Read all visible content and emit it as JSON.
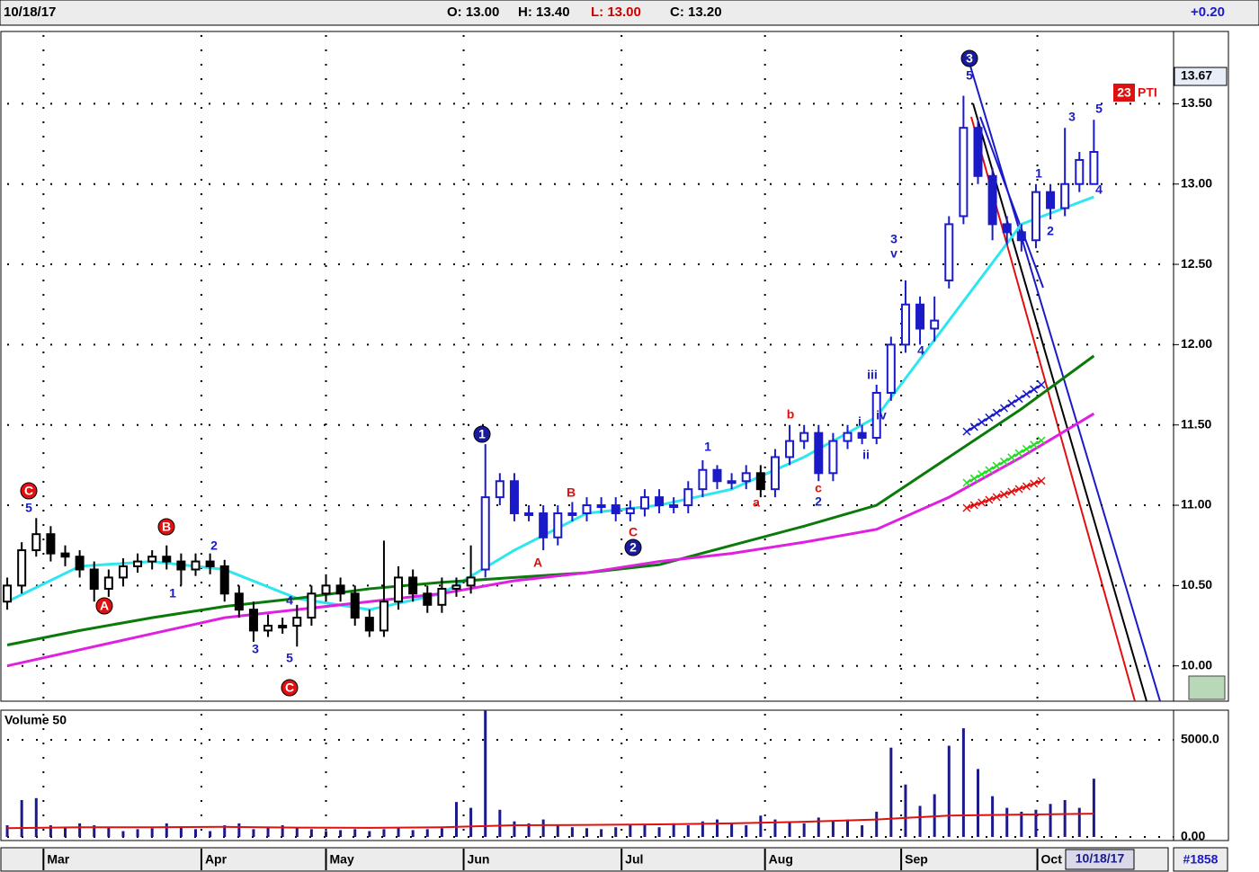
{
  "header": {
    "date": "10/18/17",
    "open": "O: 13.00",
    "high": "H: 13.40",
    "low": "L: 13.00",
    "close": "C: 13.20",
    "change": "+0.20"
  },
  "footer": {
    "date_box": "10/18/17",
    "count": "#1858"
  },
  "chart_data": {
    "type": "candlestick",
    "xlim": [
      -0.5,
      80.5
    ],
    "xticks": [
      {
        "value": 2.5,
        "label": "Mar"
      },
      {
        "value": 13.4,
        "label": "Apr"
      },
      {
        "value": 22,
        "label": "May"
      },
      {
        "value": 31.5,
        "label": "Jun"
      },
      {
        "value": 42.4,
        "label": "Jul"
      },
      {
        "value": 52.3,
        "label": "Aug"
      },
      {
        "value": 61.7,
        "label": "Sep"
      },
      {
        "value": 71.1,
        "label": "Oct"
      }
    ],
    "ylim": [
      9.78,
      13.95
    ],
    "yticks": [
      {
        "value": 10,
        "label": "10.00"
      },
      {
        "value": 10.5,
        "label": "10.50"
      },
      {
        "value": 11,
        "label": "11.00"
      },
      {
        "value": 11.5,
        "label": "11.50"
      },
      {
        "value": 12,
        "label": "12.00"
      },
      {
        "value": 12.5,
        "label": "12.50"
      },
      {
        "value": 13,
        "label": "13.00"
      },
      {
        "value": 13.5,
        "label": "13.50"
      }
    ],
    "grid": true,
    "last_marker": 13.67,
    "badge": "23",
    "badge_text": "PTI",
    "opens": [
      10.4,
      10.5,
      10.72,
      10.82,
      10.7,
      10.68,
      10.6,
      10.48,
      10.55,
      10.62,
      10.65,
      10.68,
      10.65,
      10.6,
      10.65,
      10.62,
      10.45,
      10.35,
      10.22,
      10.25,
      10.25,
      10.3,
      10.45,
      10.5,
      10.45,
      10.3,
      10.22,
      10.4,
      10.55,
      10.45,
      10.38,
      10.48,
      10.5,
      10.6,
      11.05,
      11.15,
      10.95,
      10.95,
      10.8,
      10.95,
      10.95,
      11.0,
      11.0,
      10.95,
      10.98,
      11.05,
      11.0,
      11.0,
      11.1,
      11.22,
      11.15,
      11.15,
      11.2,
      11.1,
      11.3,
      11.4,
      11.45,
      11.2,
      11.4,
      11.45,
      11.42,
      11.7,
      12.0,
      12.25,
      12.1,
      12.4,
      12.8,
      13.35,
      13.05,
      12.75,
      12.7,
      12.65,
      12.95,
      12.85,
      13.0,
      13.0
    ],
    "highs": [
      10.55,
      10.77,
      10.92,
      10.87,
      10.75,
      10.72,
      10.65,
      10.6,
      10.67,
      10.7,
      10.72,
      10.75,
      10.7,
      10.7,
      10.7,
      10.66,
      10.5,
      10.4,
      10.32,
      10.3,
      10.38,
      10.5,
      10.57,
      10.55,
      10.5,
      10.35,
      10.78,
      10.62,
      10.6,
      10.5,
      10.55,
      10.55,
      10.75,
      11.38,
      11.2,
      11.2,
      11.0,
      11.0,
      11.0,
      11.02,
      11.05,
      11.05,
      11.05,
      11.03,
      11.1,
      11.1,
      11.05,
      11.15,
      11.28,
      11.25,
      11.2,
      11.25,
      11.25,
      11.35,
      11.5,
      11.5,
      11.5,
      11.45,
      11.5,
      11.5,
      11.75,
      12.05,
      12.4,
      12.3,
      12.3,
      12.8,
      13.55,
      13.4,
      13.1,
      12.8,
      12.75,
      13.0,
      13.0,
      13.35,
      13.2,
      13.4
    ],
    "lows": [
      10.35,
      10.45,
      10.68,
      10.65,
      10.62,
      10.55,
      10.4,
      10.43,
      10.5,
      10.58,
      10.6,
      10.6,
      10.5,
      10.56,
      10.57,
      10.4,
      10.3,
      10.15,
      10.18,
      10.2,
      10.12,
      10.25,
      10.4,
      10.4,
      10.25,
      10.18,
      10.18,
      10.35,
      10.4,
      10.33,
      10.33,
      10.43,
      10.45,
      10.55,
      11.0,
      10.9,
      10.9,
      10.72,
      10.75,
      10.9,
      10.9,
      10.95,
      10.9,
      10.9,
      10.93,
      10.95,
      10.95,
      10.95,
      11.05,
      11.1,
      11.1,
      11.1,
      11.05,
      11.05,
      11.25,
      11.35,
      11.15,
      11.15,
      11.35,
      11.38,
      11.38,
      11.65,
      11.95,
      12.0,
      12.02,
      12.35,
      12.75,
      13.0,
      12.65,
      12.62,
      12.58,
      12.6,
      12.78,
      12.8,
      12.95,
      13.0
    ],
    "closes": [
      10.5,
      10.72,
      10.82,
      10.7,
      10.68,
      10.6,
      10.48,
      10.55,
      10.62,
      10.65,
      10.68,
      10.65,
      10.6,
      10.65,
      10.62,
      10.45,
      10.35,
      10.22,
      10.25,
      10.25,
      10.3,
      10.45,
      10.5,
      10.45,
      10.3,
      10.22,
      10.4,
      10.55,
      10.45,
      10.38,
      10.48,
      10.5,
      10.55,
      11.05,
      11.15,
      10.95,
      10.95,
      10.8,
      10.95,
      10.95,
      11.0,
      11.0,
      10.95,
      10.98,
      11.05,
      11.0,
      11.0,
      11.1,
      11.22,
      11.15,
      11.15,
      11.2,
      11.1,
      11.3,
      11.4,
      11.45,
      11.2,
      11.4,
      11.45,
      11.42,
      11.7,
      12.0,
      12.25,
      12.1,
      12.15,
      12.75,
      13.35,
      13.05,
      12.75,
      12.7,
      12.65,
      12.95,
      12.85,
      13.0,
      13.15,
      13.2
    ],
    "colors": [
      "#000000",
      "#000000",
      "#000000",
      "#000000",
      "#000000",
      "#000000",
      "#000000",
      "#000000",
      "#000000",
      "#000000",
      "#000000",
      "#000000",
      "#000000",
      "#000000",
      "#000000",
      "#000000",
      "#000000",
      "#000000",
      "#000000",
      "#000000",
      "#000000",
      "#000000",
      "#000000",
      "#000000",
      "#000000",
      "#000000",
      "#000000",
      "#000000",
      "#000000",
      "#000000",
      "#000000",
      "#000000",
      "#000000",
      "#1a1ac8",
      "#1a1ac8",
      "#1a1ac8",
      "#1a1ac8",
      "#1a1ac8",
      "#1a1ac8",
      "#1a1ac8",
      "#1a1ac8",
      "#1a1ac8",
      "#1a1ac8",
      "#1a1ac8",
      "#1a1ac8",
      "#1a1ac8",
      "#1a1ac8",
      "#1a1ac8",
      "#1a1ac8",
      "#1a1ac8",
      "#1a1ac8",
      "#1a1ac8",
      "#000000",
      "#1a1ac8",
      "#1a1ac8",
      "#1a1ac8",
      "#1a1ac8",
      "#1a1ac8",
      "#1a1ac8",
      "#1a1ac8",
      "#1a1ac8",
      "#1a1ac8",
      "#1a1ac8",
      "#1a1ac8",
      "#1a1ac8",
      "#1a1ac8",
      "#1a1ac8",
      "#1a1ac8",
      "#1a1ac8",
      "#1a1ac8",
      "#1a1ac8",
      "#1a1ac8",
      "#1a1ac8",
      "#1a1ac8",
      "#1a1ac8",
      "#1a1ac8"
    ],
    "series": [
      {
        "color": "#2ee6f0",
        "x": [
          0,
          5,
          10,
          15,
          20,
          25,
          30,
          35,
          40,
          45,
          50,
          55,
          60,
          65,
          70,
          75
        ],
        "values": [
          10.4,
          10.62,
          10.65,
          10.6,
          10.42,
          10.35,
          10.45,
          10.72,
          10.95,
          11.0,
          11.1,
          11.3,
          11.55,
          12.15,
          12.75,
          12.92
        ]
      },
      {
        "color": "#0a7a0a",
        "x": [
          0,
          5,
          10,
          15,
          20,
          25,
          30,
          35,
          40,
          45,
          50,
          55,
          60,
          65,
          70,
          75
        ],
        "values": [
          10.13,
          10.22,
          10.3,
          10.37,
          10.42,
          10.48,
          10.52,
          10.55,
          10.58,
          10.63,
          10.75,
          10.87,
          11.0,
          11.3,
          11.6,
          11.93
        ]
      },
      {
        "color": "#e020e0",
        "x": [
          0,
          5,
          10,
          15,
          20,
          25,
          30,
          35,
          40,
          45,
          50,
          55,
          60,
          65,
          70,
          75
        ],
        "values": [
          10.0,
          10.1,
          10.2,
          10.3,
          10.35,
          10.4,
          10.45,
          10.53,
          10.58,
          10.65,
          10.7,
          10.77,
          10.85,
          11.05,
          11.3,
          11.57
        ]
      }
    ],
    "annotations": [
      "C",
      "5",
      "A",
      "B",
      "1",
      "2",
      "3",
      "4",
      "5",
      "C",
      "1",
      "A",
      "B",
      "C",
      "2",
      "1",
      "a",
      "b",
      "c",
      "2",
      "i",
      "ii",
      "iii",
      "iv",
      "3",
      "v",
      "4",
      "3",
      "5",
      "1",
      "2",
      "3",
      "5",
      "4"
    ],
    "volume": {
      "title": "Volume 50",
      "color": "#1a1a8c",
      "ylim": [
        0,
        6530
      ],
      "yticks": [
        {
          "value": 0,
          "label": "0.00"
        },
        {
          "value": 5000,
          "label": "5000.0"
        }
      ],
      "values": [
        600,
        1900,
        2000,
        600,
        500,
        700,
        600,
        500,
        300,
        400,
        450,
        700,
        500,
        400,
        300,
        600,
        700,
        400,
        500,
        600,
        500,
        400,
        300,
        350,
        400,
        300,
        400,
        500,
        350,
        400,
        450,
        1800,
        1500,
        6500,
        1400,
        800,
        700,
        900,
        600,
        500,
        450,
        400,
        500,
        600,
        600,
        500,
        700,
        600,
        800,
        900,
        700,
        600,
        1100,
        900,
        800,
        700,
        1000,
        800,
        900,
        600,
        1300,
        4600,
        2700,
        1600,
        2200,
        4700,
        5600,
        3500,
        2100,
        1500,
        1300,
        1400,
        1700,
        1900,
        1500,
        3000
      ],
      "ma": {
        "color": "#e01010",
        "x": [
          0,
          5,
          10,
          15,
          20,
          25,
          30,
          35,
          40,
          45,
          50,
          55,
          60,
          65,
          70,
          75
        ],
        "values": [
          450,
          500,
          500,
          520,
          480,
          470,
          500,
          600,
          620,
          650,
          700,
          780,
          900,
          1100,
          1150,
          1200
        ]
      }
    }
  }
}
